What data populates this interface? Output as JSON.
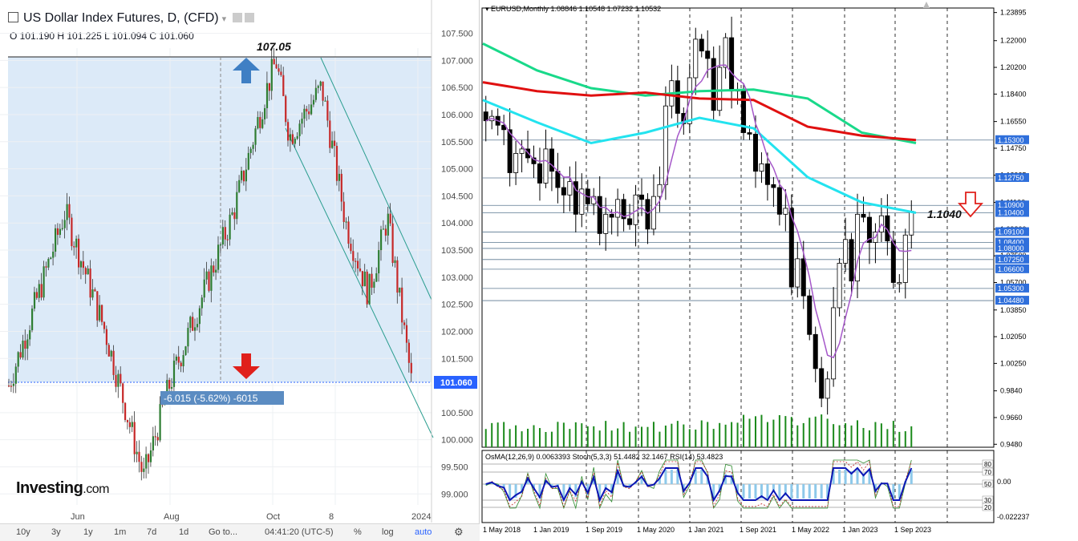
{
  "left_panel": {
    "title": "US Dollar Index Futures, D, (CFD)",
    "ohlc": "O 101.190  H 101.225  L 101.094  C 101.060",
    "logo_main": "Investing",
    "logo_suffix": ".com",
    "peak_label": "107.05",
    "change_label": "-6.015 (-5.62%) -6015",
    "bottom_bar": {
      "ranges": [
        "10y",
        "3y",
        "1y",
        "1m",
        "7d",
        "1d"
      ],
      "goto": "Go to...",
      "clock": "04:41:20 (UTC-5)",
      "percent": "%",
      "log": "log",
      "auto": "auto"
    },
    "colors": {
      "bull": "#2e7d32",
      "bear": "#c62828",
      "zone": "#dceaf8",
      "arrow_up": "#3f7fc4",
      "arrow_down": "#e0201b",
      "price_tag": "#2962ff"
    }
  },
  "right_panel": {
    "header": "EURUSD,Monthly  1.08846 1.10548 1.07232 1.10532",
    "annotation": "1.1040",
    "osc_header": "OsMA(12,26,9) 0.0063393  Stoch(5,3,3) 51.4482 32.1467  RSI(14) 53.4823",
    "colors": {
      "ma_green": "#19d98a",
      "ma_red": "#e01010",
      "ma_cyan": "#23e3ef",
      "ma_purple": "#a557c9",
      "box_fill": "#2f6fdb"
    }
  },
  "chart_data": [
    {
      "type": "candlestick",
      "symbol": "US Dollar Index Futures",
      "timeframe": "D",
      "x_tick_labels": [
        "Jun",
        "Aug",
        "Oct",
        "8",
        "2024"
      ],
      "y_ticks": [
        99.0,
        99.5,
        100.0,
        100.5,
        101.0,
        101.5,
        102.0,
        102.5,
        103.0,
        103.5,
        104.0,
        104.5,
        105.0,
        105.5,
        106.0,
        106.5,
        107.0,
        107.5
      ],
      "ylim": [
        98.75,
        107.9
      ],
      "last_price": 101.06,
      "last_price_label": "101.060",
      "annotations": [
        {
          "text": "107.05",
          "value": 107.05
        },
        {
          "text": "-6.015 (-5.62%) -6015"
        }
      ],
      "key_levels": [
        107.05,
        101.06
      ],
      "path_anchors": [
        101.0,
        104.2,
        102.0,
        99.3,
        101.0,
        104.2,
        106.4,
        107.0,
        105.6,
        106.5,
        104.0,
        102.7,
        104.1,
        101.06
      ]
    },
    {
      "type": "candlestick",
      "symbol": "EURUSD",
      "timeframe": "Monthly",
      "x_tick_labels": [
        "1 May 2018",
        "1 Jan 2019",
        "1 Sep 2019",
        "1 May 2020",
        "1 Jan 2021",
        "1 Sep 2021",
        "1 May 2022",
        "1 Jan 2023",
        "1 Sep 2023"
      ],
      "y_ticks": [
        0.948,
        0.966,
        0.984,
        1.0025,
        1.0205,
        1.0385,
        1.057,
        1.075,
        1.093,
        1.111,
        1.12935,
        1.1475,
        1.1655,
        1.184,
        1.202,
        1.22,
        1.23895
      ],
      "ylim": [
        0.946,
        1.242
      ],
      "levels": [
        {
          "label": "1.15300",
          "value": 1.153
        },
        {
          "label": "1.12750",
          "value": 1.1275
        },
        {
          "label": "1.10900",
          "value": 1.109
        },
        {
          "label": "1.10400",
          "value": 1.104
        },
        {
          "label": "1.09100",
          "value": 1.091
        },
        {
          "label": "1.08400",
          "value": 1.084
        },
        {
          "label": "1.08000",
          "value": 1.08
        },
        {
          "label": "1.07250",
          "value": 1.0725
        },
        {
          "label": "1.06600",
          "value": 1.066
        },
        {
          "label": "1.05300",
          "value": 1.053
        },
        {
          "label": "1.04480",
          "value": 1.0448
        }
      ],
      "last_close": 1.10532,
      "monthly_closes": [
        1.166,
        1.169,
        1.163,
        1.16,
        1.131,
        1.144,
        1.147,
        1.141,
        1.137,
        1.124,
        1.147,
        1.132,
        1.121,
        1.116,
        1.125,
        1.103,
        1.12,
        1.11,
        1.115,
        1.09,
        1.103,
        1.101,
        1.113,
        1.1,
        1.096,
        1.116,
        1.113,
        1.093,
        1.115,
        1.123,
        1.176,
        1.193,
        1.171,
        1.164,
        1.195,
        1.221,
        1.213,
        1.208,
        1.173,
        1.202,
        1.222,
        1.186,
        1.187,
        1.158,
        1.157,
        1.132,
        1.137,
        1.123,
        1.121,
        1.103,
        1.107,
        1.054,
        1.073,
        1.048,
        1.022,
        0.999,
        0.979,
        0.992,
        1.04,
        1.07,
        1.086,
        1.058,
        1.103,
        1.101,
        1.084,
        1.091,
        1.102,
        1.085,
        1.057,
        1.057,
        1.089,
        1.105
      ],
      "series": [
        {
          "name": "ma_slow_green",
          "values": [
            1.218,
            1.2,
            1.188,
            1.183,
            1.186,
            1.187,
            1.181,
            1.158,
            1.151
          ]
        },
        {
          "name": "ma_mid_red",
          "values": [
            1.192,
            1.186,
            1.183,
            1.185,
            1.181,
            1.18,
            1.162,
            1.156,
            1.153
          ]
        },
        {
          "name": "ma_fast_cyan",
          "values": [
            1.18,
            1.165,
            1.151,
            1.158,
            1.168,
            1.161,
            1.128,
            1.111,
            1.104
          ]
        }
      ]
    },
    {
      "type": "line",
      "name": "Oscillators",
      "indicators": [
        {
          "name": "OsMA(12,26,9)",
          "value": 0.0063393
        },
        {
          "name": "Stoch(5,3,3)",
          "values": [
            51.4482,
            32.1467
          ]
        },
        {
          "name": "RSI(14)",
          "value": 53.4823
        }
      ],
      "level_labels": [
        "80",
        "70",
        "50",
        "30",
        "20"
      ],
      "y_labels": [
        "0.00",
        "-0.022237"
      ]
    }
  ]
}
